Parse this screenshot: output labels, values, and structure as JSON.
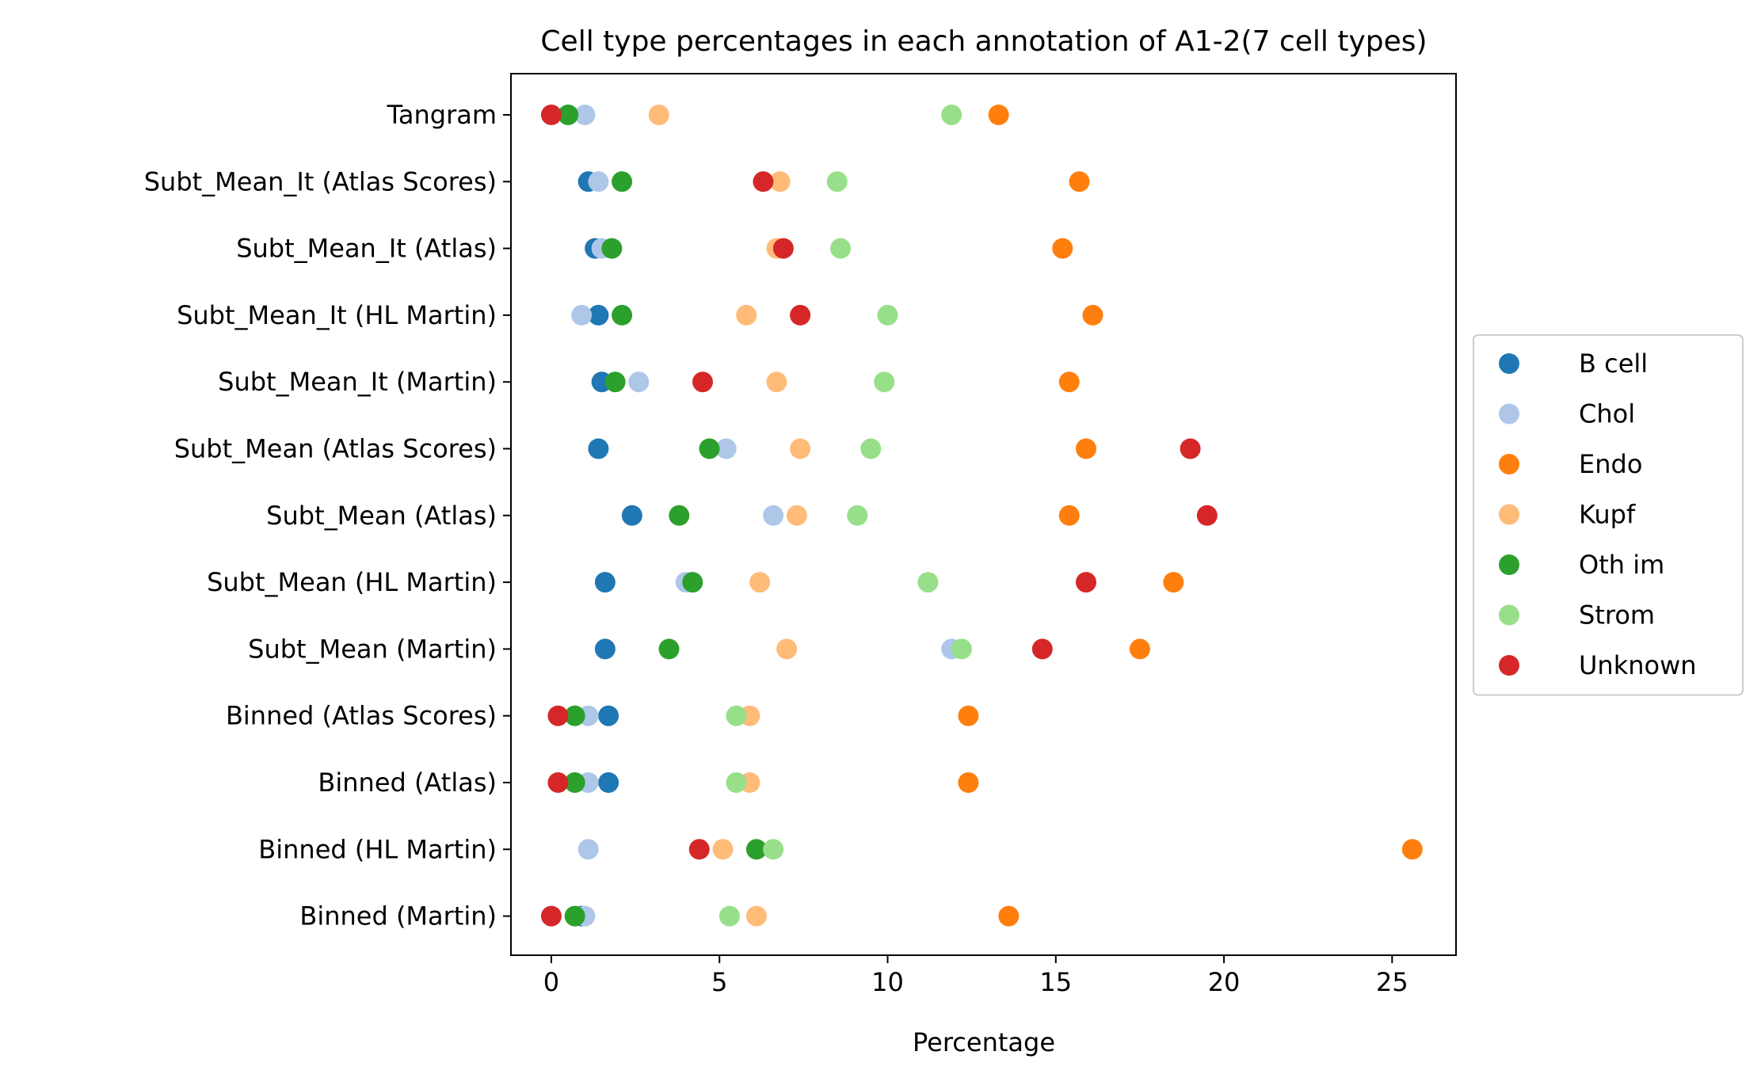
{
  "chart_data": {
    "type": "scatter",
    "title": "Cell type percentages in each annotation of A1-2(7 cell types)",
    "xlabel": "Percentage",
    "ylabel": "",
    "xlim": [
      -1.2,
      26.9
    ],
    "xticks": [
      0,
      5,
      10,
      15,
      20,
      25
    ],
    "grid": false,
    "legend_position": "right-center",
    "categories": [
      "Tangram",
      "Subt_Mean_It (Atlas Scores)",
      "Subt_Mean_It (Atlas)",
      "Subt_Mean_It (HL Martin)",
      "Subt_Mean_It (Martin)",
      "Subt_Mean (Atlas Scores)",
      "Subt_Mean (Atlas)",
      "Subt_Mean (HL Martin)",
      "Subt_Mean (Martin)",
      "Binned (Atlas Scores)",
      "Binned (Atlas)",
      "Binned (HL Martin)",
      "Binned (Martin)"
    ],
    "series": [
      {
        "name": "B cell",
        "color": "#1f77b4",
        "values": [
          null,
          1.1,
          1.3,
          1.4,
          1.5,
          1.4,
          2.4,
          1.6,
          1.6,
          1.7,
          1.7,
          null,
          0.9
        ]
      },
      {
        "name": "Chol",
        "color": "#aec7e8",
        "values": [
          1.0,
          1.4,
          1.5,
          0.9,
          2.6,
          5.2,
          6.6,
          4.0,
          11.9,
          1.1,
          1.1,
          1.1,
          1.0
        ]
      },
      {
        "name": "Endo",
        "color": "#ff7f0e",
        "values": [
          13.3,
          15.7,
          15.2,
          16.1,
          15.4,
          15.9,
          15.4,
          18.5,
          17.5,
          12.4,
          12.4,
          25.6,
          13.6
        ]
      },
      {
        "name": "Kupf",
        "color": "#ffbb78",
        "values": [
          3.2,
          6.8,
          6.7,
          5.8,
          6.7,
          7.4,
          7.3,
          6.2,
          7.0,
          5.9,
          5.9,
          5.1,
          6.1
        ]
      },
      {
        "name": "Oth im",
        "color": "#2ca02c",
        "values": [
          0.5,
          2.1,
          1.8,
          2.1,
          1.9,
          4.7,
          3.8,
          4.2,
          3.5,
          0.7,
          0.7,
          6.1,
          0.7
        ]
      },
      {
        "name": "Strom",
        "color": "#98df8a",
        "values": [
          11.9,
          8.5,
          8.6,
          10.0,
          9.9,
          9.5,
          9.1,
          11.2,
          12.2,
          5.5,
          5.5,
          6.6,
          5.3
        ]
      },
      {
        "name": "Unknown",
        "color": "#d62728",
        "values": [
          0.0,
          6.3,
          6.9,
          7.4,
          4.5,
          19.0,
          19.5,
          15.9,
          14.6,
          0.2,
          0.2,
          4.4,
          0.0
        ]
      }
    ]
  }
}
